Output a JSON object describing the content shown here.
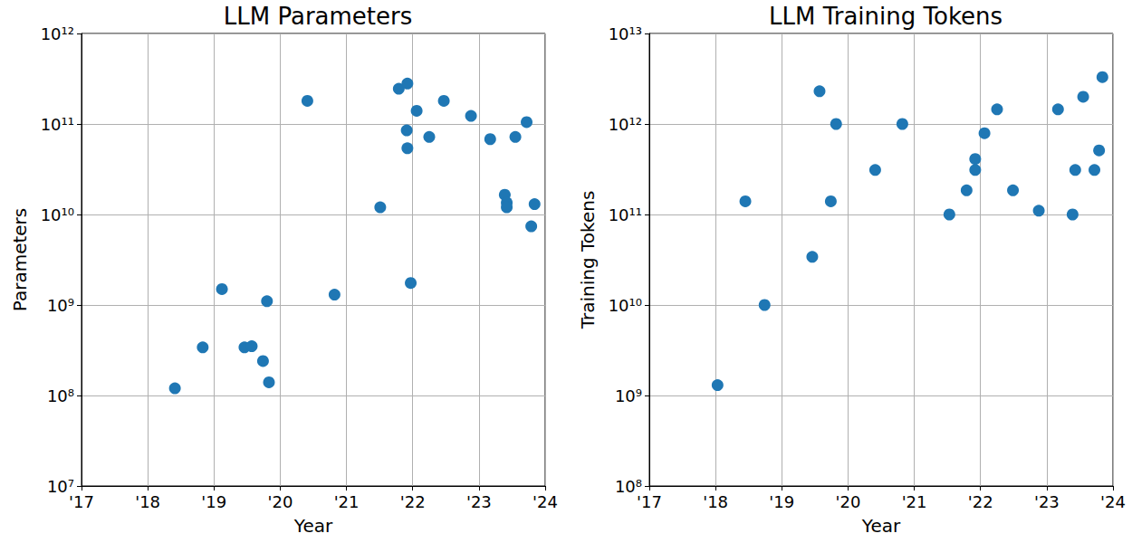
{
  "chart_data": [
    {
      "type": "scatter",
      "title": "LLM Parameters",
      "x_label": "Year",
      "y_label": "Parameters",
      "color": "#1f77b4",
      "marker": "circle",
      "log": "y",
      "grid": true,
      "x": [
        2018.41,
        2018.83,
        2019.12,
        2019.46,
        2019.57,
        2019.74,
        2019.8,
        2019.83,
        2020.41,
        2020.82,
        2021.51,
        2021.79,
        2021.92,
        2021.91,
        2021.92,
        2021.97,
        2022.06,
        2022.25,
        2022.47,
        2022.88,
        2023.17,
        2023.39,
        2023.42,
        2023.42,
        2023.55,
        2023.72,
        2023.79,
        2023.84
      ],
      "values": [
        120000000.0,
        340000000.0,
        1500000000.0,
        340000000.0,
        350000000.0,
        240000000.0,
        1100000000.0,
        140000000.0,
        180000000000.0,
        1300000000.0,
        12000000000.0,
        245000000000.0,
        280000000000.0,
        85000000000.0,
        54000000000.0,
        1750000000.0,
        140000000000.0,
        72000000000.0,
        180000000000.0,
        123000000000.0,
        68000000000.0,
        16500000000.0,
        13500000000.0,
        12000000000.0,
        72000000000.0,
        105000000000.0,
        7400000000.0,
        13000000000.0
      ],
      "xlim": [
        2017,
        2024
      ],
      "xticks": [
        {
          "value": 2017,
          "label": "'17"
        },
        {
          "value": 2018,
          "label": "'18"
        },
        {
          "value": 2019,
          "label": "'19"
        },
        {
          "value": 2020,
          "label": "'20"
        },
        {
          "value": 2021,
          "label": "'21"
        },
        {
          "value": 2022,
          "label": "'22"
        },
        {
          "value": 2023,
          "label": "'23"
        },
        {
          "value": 2024,
          "label": "'24"
        }
      ],
      "ylim": [
        10000000.0,
        1000000000000.0
      ],
      "yticks": [
        {
          "value": 10000000.0,
          "label": "10⁷"
        },
        {
          "value": 100000000.0,
          "label": "10⁸"
        },
        {
          "value": 1000000000.0,
          "label": "10⁹"
        },
        {
          "value": 10000000000.0,
          "label": "10¹⁰"
        },
        {
          "value": 100000000000.0,
          "label": "10¹¹"
        },
        {
          "value": 1000000000000.0,
          "label": "10¹²"
        }
      ]
    },
    {
      "type": "scatter",
      "title": "LLM Training Tokens",
      "x_label": "Year",
      "y_label": "Training Tokens",
      "color": "#1f77b4",
      "marker": "circle",
      "log": "y",
      "grid": true,
      "x": [
        2018.03,
        2018.45,
        2018.74,
        2019.46,
        2019.57,
        2019.74,
        2019.82,
        2020.41,
        2020.82,
        2021.53,
        2021.79,
        2021.92,
        2021.92,
        2022.06,
        2022.25,
        2022.49,
        2022.88,
        2023.17,
        2023.39,
        2023.43,
        2023.55,
        2023.72,
        2023.79,
        2023.84
      ],
      "values": [
        1300000000.0,
        140000000000.0,
        10000000000.0,
        34000000000.0,
        2300000000000.0,
        140000000000.0,
        1000000000000.0,
        310000000000.0,
        1000000000000.0,
        100000000000.0,
        185000000000.0,
        310000000000.0,
        410000000000.0,
        790000000000.0,
        1450000000000.0,
        185000000000.0,
        110000000000.0,
        1450000000000.0,
        100000000000.0,
        310000000000.0,
        2000000000000.0,
        310000000000.0,
        510000000000.0,
        3300000000000.0
      ],
      "xlim": [
        2017,
        2024
      ],
      "xticks": [
        {
          "value": 2017,
          "label": "'17"
        },
        {
          "value": 2018,
          "label": "'18"
        },
        {
          "value": 2019,
          "label": "'19"
        },
        {
          "value": 2020,
          "label": "'20"
        },
        {
          "value": 2021,
          "label": "'21"
        },
        {
          "value": 2022,
          "label": "'22"
        },
        {
          "value": 2023,
          "label": "'23"
        },
        {
          "value": 2024,
          "label": "'24"
        }
      ],
      "ylim": [
        100000000.0,
        10000000000000.0
      ],
      "yticks": [
        {
          "value": 100000000.0,
          "label": "10⁸"
        },
        {
          "value": 1000000000.0,
          "label": "10⁹"
        },
        {
          "value": 10000000000.0,
          "label": "10¹⁰"
        },
        {
          "value": 100000000000.0,
          "label": "10¹¹"
        },
        {
          "value": 1000000000000.0,
          "label": "10¹²"
        },
        {
          "value": 10000000000000.0,
          "label": "10¹³"
        }
      ]
    }
  ]
}
